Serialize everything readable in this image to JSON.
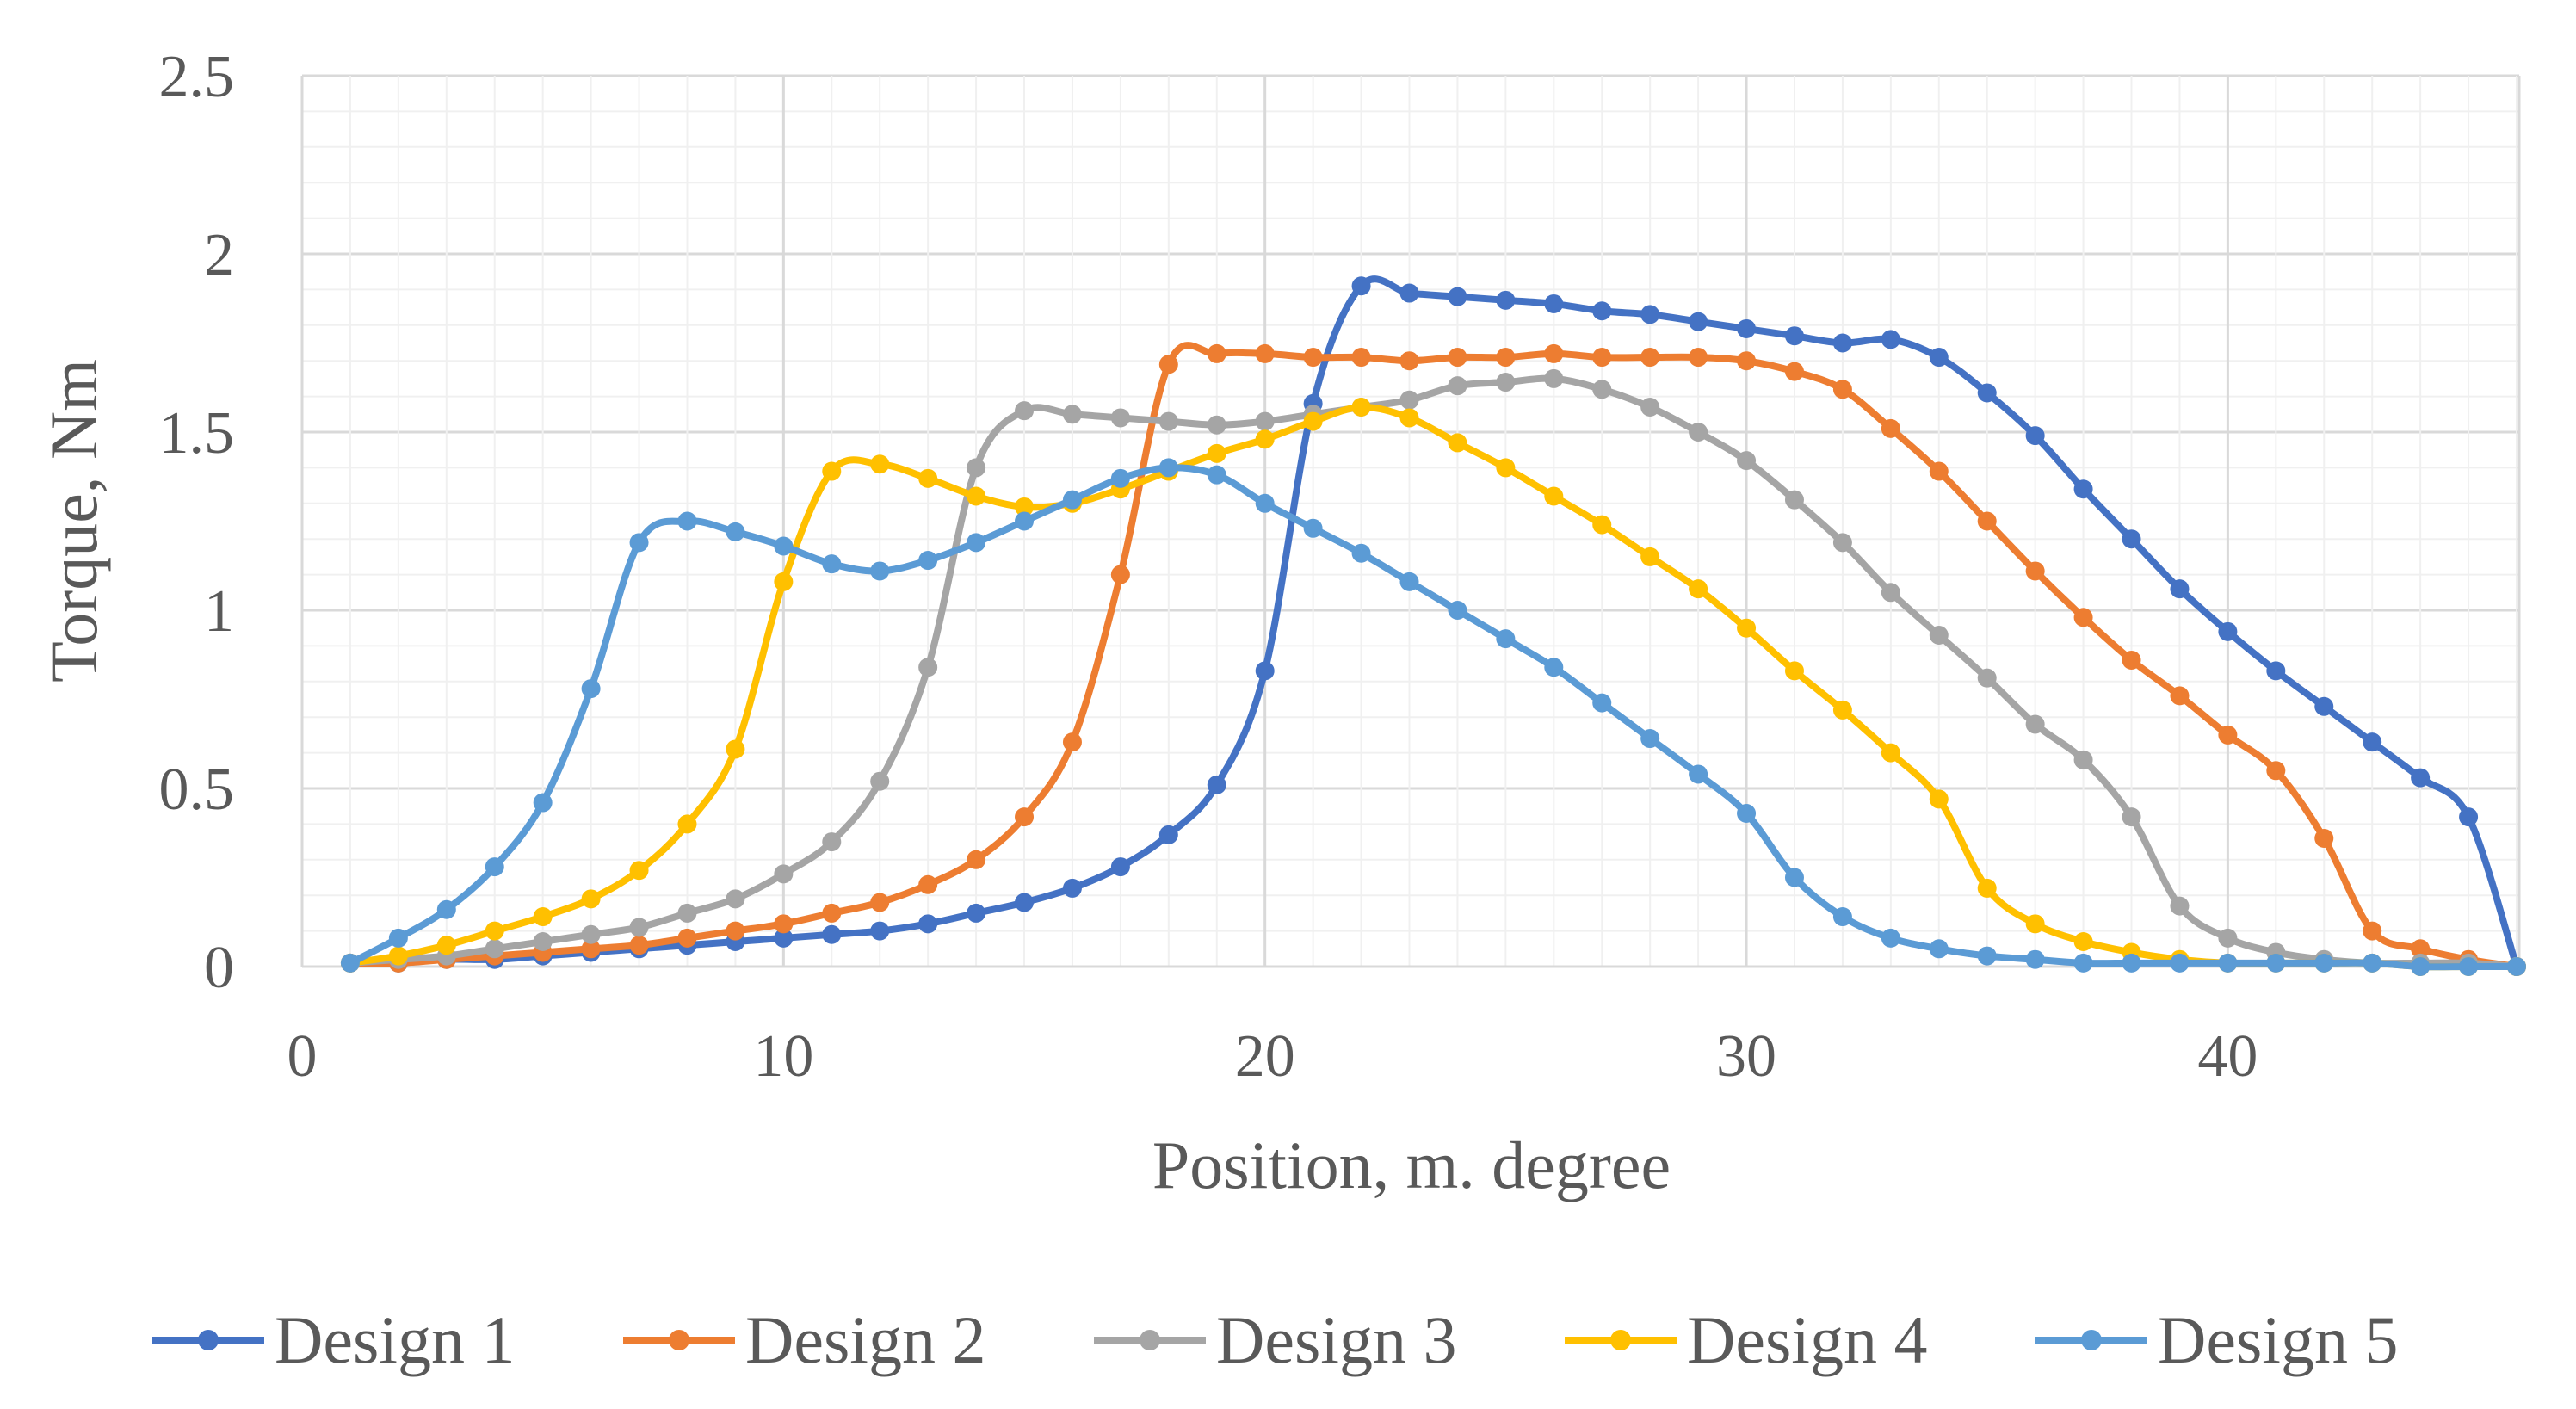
{
  "chart_data": {
    "type": "line",
    "title": "",
    "xlabel": "Position, m. degree",
    "ylabel": "Torque, Nm",
    "xlim": [
      0,
      46
    ],
    "ylim": [
      0,
      2.5
    ],
    "xticks": [
      0,
      10,
      20,
      30,
      40
    ],
    "yticks": [
      0,
      0.5,
      1,
      1.5,
      2,
      2.5
    ],
    "xtick_labels": [
      "0",
      "10",
      "20",
      "30",
      "40"
    ],
    "ytick_labels": [
      "0",
      "0.5",
      "1",
      "1.5",
      "2",
      "2.5"
    ],
    "grid": true,
    "legend_position": "bottom",
    "x": [
      1,
      2,
      3,
      4,
      5,
      6,
      7,
      8,
      9,
      10,
      11,
      12,
      13,
      14,
      15,
      16,
      17,
      18,
      19,
      20,
      21,
      22,
      23,
      24,
      25,
      26,
      27,
      28,
      29,
      30,
      31,
      32,
      33,
      34,
      35,
      36,
      37,
      38,
      39,
      40,
      41,
      42,
      43,
      44,
      45,
      46
    ],
    "series": [
      {
        "name": "Design 1",
        "color": "#4472C4",
        "values": [
          0.01,
          0.01,
          0.02,
          0.02,
          0.03,
          0.04,
          0.05,
          0.06,
          0.07,
          0.08,
          0.09,
          0.1,
          0.12,
          0.15,
          0.18,
          0.22,
          0.28,
          0.37,
          0.51,
          0.83,
          1.58,
          1.91,
          1.89,
          1.88,
          1.87,
          1.86,
          1.84,
          1.83,
          1.81,
          1.79,
          1.77,
          1.75,
          1.76,
          1.71,
          1.61,
          1.49,
          1.34,
          1.2,
          1.06,
          0.94,
          0.83,
          0.73,
          0.63,
          0.53,
          0.42,
          0.0
        ]
      },
      {
        "name": "Design 2",
        "color": "#ED7D31",
        "values": [
          0.01,
          0.01,
          0.02,
          0.03,
          0.04,
          0.05,
          0.06,
          0.08,
          0.1,
          0.12,
          0.15,
          0.18,
          0.23,
          0.3,
          0.42,
          0.63,
          1.1,
          1.69,
          1.72,
          1.72,
          1.71,
          1.71,
          1.7,
          1.71,
          1.71,
          1.72,
          1.71,
          1.71,
          1.71,
          1.7,
          1.67,
          1.62,
          1.51,
          1.39,
          1.25,
          1.11,
          0.98,
          0.86,
          0.76,
          0.65,
          0.55,
          0.36,
          0.1,
          0.05,
          0.02,
          0.0
        ]
      },
      {
        "name": "Design 3",
        "color": "#A5A5A5",
        "values": [
          0.01,
          0.02,
          0.03,
          0.05,
          0.07,
          0.09,
          0.11,
          0.15,
          0.19,
          0.26,
          0.35,
          0.52,
          0.84,
          1.4,
          1.56,
          1.55,
          1.54,
          1.53,
          1.52,
          1.53,
          1.55,
          1.57,
          1.59,
          1.63,
          1.64,
          1.65,
          1.62,
          1.57,
          1.5,
          1.42,
          1.31,
          1.19,
          1.05,
          0.93,
          0.81,
          0.68,
          0.58,
          0.42,
          0.17,
          0.08,
          0.04,
          0.02,
          0.01,
          0.01,
          0.01,
          0.0
        ]
      },
      {
        "name": "Design 4",
        "color": "#FFC000",
        "values": [
          0.01,
          0.03,
          0.06,
          0.1,
          0.14,
          0.19,
          0.27,
          0.4,
          0.61,
          1.08,
          1.39,
          1.41,
          1.37,
          1.32,
          1.29,
          1.3,
          1.34,
          1.39,
          1.44,
          1.48,
          1.53,
          1.57,
          1.54,
          1.47,
          1.4,
          1.32,
          1.24,
          1.15,
          1.06,
          0.95,
          0.83,
          0.72,
          0.6,
          0.47,
          0.22,
          0.12,
          0.07,
          0.04,
          0.02,
          0.01,
          0.01,
          0.01,
          0.01,
          0.0,
          0.0,
          0.0
        ]
      },
      {
        "name": "Design 5",
        "color": "#5B9BD5",
        "values": [
          0.01,
          0.08,
          0.16,
          0.28,
          0.46,
          0.78,
          1.19,
          1.25,
          1.22,
          1.18,
          1.13,
          1.11,
          1.14,
          1.19,
          1.25,
          1.31,
          1.37,
          1.4,
          1.38,
          1.3,
          1.23,
          1.16,
          1.08,
          1.0,
          0.92,
          0.84,
          0.74,
          0.64,
          0.54,
          0.43,
          0.25,
          0.14,
          0.08,
          0.05,
          0.03,
          0.02,
          0.01,
          0.01,
          0.01,
          0.01,
          0.01,
          0.01,
          0.01,
          0.0,
          0.0,
          0.0
        ]
      }
    ]
  }
}
